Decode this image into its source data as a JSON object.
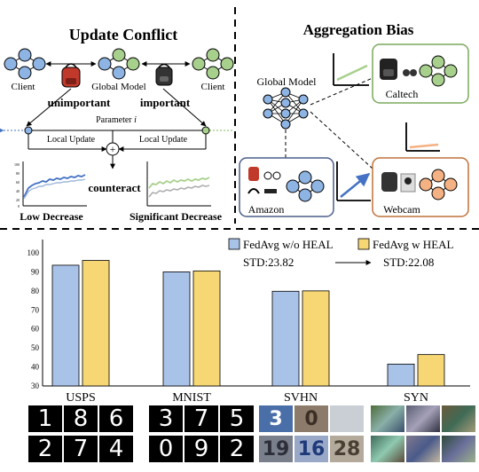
{
  "top_left": {
    "title": "Update Conflict",
    "client_left": "Client",
    "global_model": "Global Model",
    "client_right": "Client",
    "unimportant": "unimportant",
    "important": "important",
    "parameter": "Parameter ",
    "parameter_var": "i",
    "local_update_left": "Local Update",
    "local_update_right": "Local Update",
    "counteract": "counteract",
    "low_decrease": "Low Decrease",
    "significant_decrease": "Significant Decrease",
    "mini_ticks": [
      "100",
      "80",
      "60",
      "40",
      "20",
      "0"
    ],
    "plus_sign": "+"
  },
  "top_right": {
    "title": "Aggregation Bias",
    "global_model": "Global Model",
    "caltech": "Caltech",
    "amazon": "Amazon",
    "webcam": "Webcam"
  },
  "chart_data": {
    "type": "bar",
    "categories": [
      "USPS",
      "MNIST",
      "SVHN",
      "SYN"
    ],
    "series": [
      {
        "name": "FedAvg w/o HEAL",
        "values": [
          93.5,
          90.0,
          79.8,
          41.5
        ],
        "color": "#a9c3e8"
      },
      {
        "name": "FedAvg w HEAL",
        "values": [
          96.0,
          90.5,
          80.0,
          46.5
        ],
        "color": "#f7d774"
      }
    ],
    "ylim": [
      30,
      100
    ],
    "yticks": [
      "30",
      "40",
      "50",
      "60",
      "70",
      "80",
      "90",
      "100"
    ],
    "std_without": "STD:23.82",
    "std_with": "STD:22.08",
    "grid": false,
    "legend": "top-right"
  },
  "samples": {
    "usps": [
      "1",
      "8",
      "6",
      "2",
      "7",
      "4"
    ],
    "mnist": [
      "3",
      "7",
      "5",
      "0",
      "9",
      "2"
    ],
    "svhn": [
      "3",
      "0",
      "",
      "19",
      "16",
      "28"
    ]
  },
  "colors": {
    "blue_node": "#8eb4e3",
    "green_node": "#a8d08d",
    "orange_node": "#f4b183",
    "dark_border": "#2f3e5c",
    "caltech_border": "#7aa95c",
    "amazon_border": "#4a5d8a",
    "webcam_border": "#c0713a"
  }
}
